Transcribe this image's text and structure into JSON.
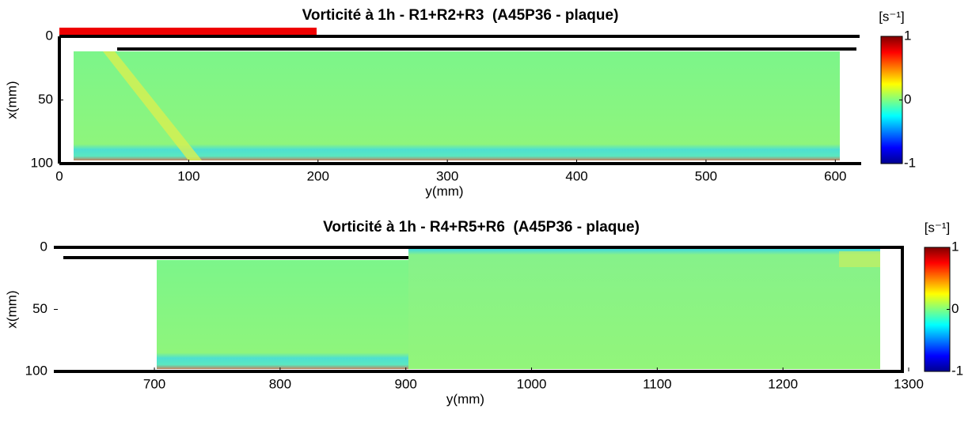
{
  "chart_data": [
    {
      "type": "heatmap",
      "title": "Vorticité à 1h - R1+R2+R3  (A45P36 - plaque)",
      "x_label": "y(mm)",
      "y_label": "x(mm)",
      "xlim": [
        0,
        620
      ],
      "xticks": [
        0,
        100,
        200,
        300,
        400,
        500,
        600
      ],
      "ylim": [
        0,
        100
      ],
      "yticks": [
        0,
        50,
        100
      ],
      "colorbar": {
        "label": "[s⁻¹]",
        "clim": [
          -1,
          1
        ],
        "ticks": [
          -1,
          0,
          1
        ]
      }
    },
    {
      "type": "heatmap",
      "title": "Vorticité à 1h - R4+R5+R6  (A45P36 - plaque)",
      "x_label": "y(mm)",
      "y_label": "x(mm)",
      "xlim": [
        620,
        1300
      ],
      "xticks": [
        700,
        800,
        900,
        1000,
        1100,
        1200,
        1300
      ],
      "ylim": [
        0,
        100
      ],
      "yticks": [
        0,
        50,
        100
      ],
      "colorbar": {
        "label": "[s⁻¹]",
        "clim": [
          -1,
          1
        ],
        "ticks": [
          -1,
          0,
          1
        ]
      }
    }
  ]
}
